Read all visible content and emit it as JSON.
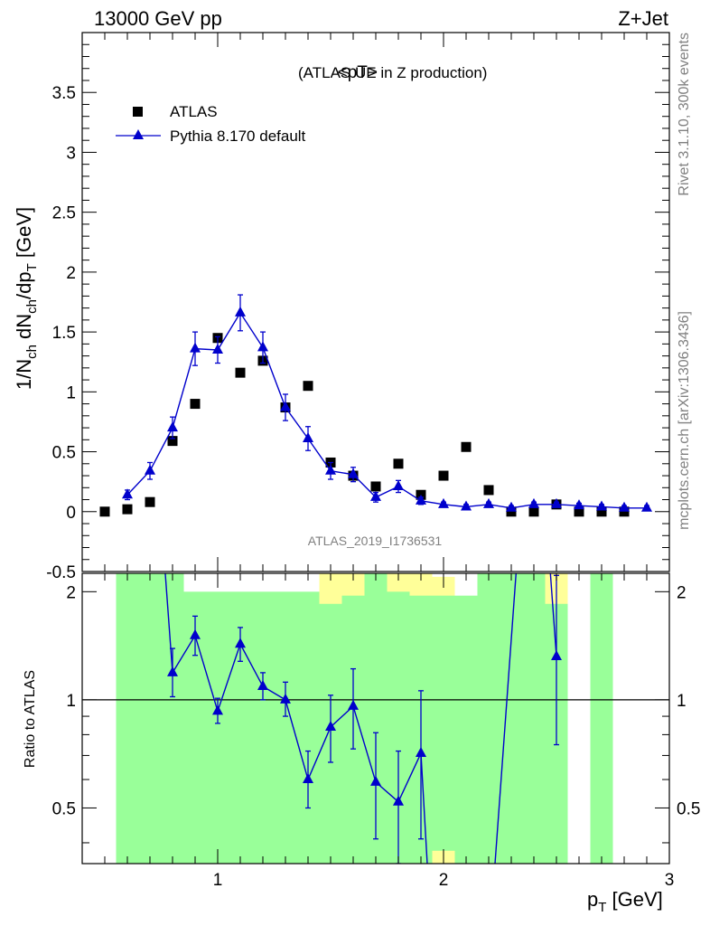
{
  "header": {
    "left": "13000 GeV pp",
    "right": "Z+Jet"
  },
  "side_labels": {
    "rivet": "Rivet 3.1.10,  300k events",
    "mcplots": "mcplots.cern.ch [arXiv:1306.3436]"
  },
  "colors": {
    "mc": "#0000cc",
    "data": "#000000",
    "band_inner": "#99ff99",
    "band_outer": "#ffff99"
  },
  "chart_data": [
    {
      "type": "scatter",
      "title": "<pT>",
      "subtitle": "(ATLAS UE in Z production)",
      "ylabel": "1/N_ch dN_ch/dp_T [GeV]",
      "watermark": "ATLAS_2019_I1736531",
      "xlim": [
        0.4,
        3.0
      ],
      "ylim": [
        -0.5,
        4.0
      ],
      "yticks": [
        "-0.5",
        "0",
        "0.5",
        "1",
        "1.5",
        "2",
        "2.5",
        "3",
        "3.5"
      ],
      "legend_position": "top-left",
      "series": [
        {
          "name": "ATLAS",
          "marker": "square",
          "x": [
            0.5,
            0.6,
            0.7,
            0.8,
            0.9,
            1.0,
            1.1,
            1.2,
            1.3,
            1.4,
            1.5,
            1.6,
            1.7,
            1.8,
            1.9,
            2.0,
            2.1,
            2.2,
            2.3,
            2.4,
            2.5,
            2.6,
            2.7,
            2.8
          ],
          "y": [
            0.0,
            0.02,
            0.08,
            0.59,
            0.9,
            1.45,
            1.16,
            1.26,
            0.87,
            1.05,
            0.41,
            0.3,
            0.21,
            0.4,
            0.14,
            0.3,
            0.54,
            0.18,
            0.0,
            0.0,
            0.06,
            0.0,
            0.0,
            0.0
          ]
        },
        {
          "name": "Pythia 8.170 default",
          "marker": "triangle",
          "x": [
            0.6,
            0.7,
            0.8,
            0.9,
            1.0,
            1.1,
            1.2,
            1.3,
            1.4,
            1.5,
            1.6,
            1.7,
            1.8,
            1.9,
            2.0,
            2.1,
            2.2,
            2.3,
            2.4,
            2.5,
            2.6,
            2.7,
            2.8,
            2.9
          ],
          "y": [
            0.14,
            0.34,
            0.7,
            1.36,
            1.35,
            1.66,
            1.37,
            0.87,
            0.61,
            0.34,
            0.31,
            0.12,
            0.21,
            0.09,
            0.06,
            0.04,
            0.06,
            0.03,
            0.06,
            0.06,
            0.05,
            0.04,
            0.03,
            0.03
          ],
          "err": [
            0.04,
            0.07,
            0.09,
            0.14,
            0.11,
            0.15,
            0.13,
            0.11,
            0.1,
            0.07,
            0.06,
            0.04,
            0.05,
            0.03,
            0.02,
            0.02,
            0.02,
            0.02,
            0.02,
            0.02,
            0.02,
            0.02,
            0.02,
            0.02
          ]
        }
      ]
    },
    {
      "type": "line",
      "ylabel": "Ratio to ATLAS",
      "xlabel": "p_T [GeV]",
      "xlim": [
        0.4,
        3.0
      ],
      "ylim": [
        0.35,
        2.25
      ],
      "yticks": [
        "0.5",
        "1",
        "2"
      ],
      "xticks": [
        "1",
        "2",
        "3"
      ],
      "reference_line": 1.0,
      "series": [
        {
          "name": "Pythia 8.170 default",
          "x": [
            0.8,
            0.9,
            1.0,
            1.1,
            1.2,
            1.3,
            1.4,
            1.5,
            1.6,
            1.7,
            1.8,
            1.9
          ],
          "y": [
            1.19,
            1.51,
            0.93,
            1.43,
            1.09,
            1.0,
            0.6,
            0.84,
            0.96,
            0.59,
            0.52,
            0.71
          ],
          "err_lo": [
            0.17,
            0.18,
            0.07,
            0.15,
            0.09,
            0.1,
            0.1,
            0.17,
            0.23,
            0.18,
            0.17,
            0.3
          ],
          "err_hi": [
            0.2,
            0.2,
            0.08,
            0.16,
            0.1,
            0.12,
            0.12,
            0.19,
            0.26,
            0.22,
            0.2,
            0.35
          ]
        },
        {
          "name": "Pythia 8.170 default (upper)",
          "x": [
            2.5
          ],
          "y": [
            1.32
          ],
          "err_lo": [
            0.57
          ],
          "err_hi": [
            0.9
          ]
        }
      ],
      "bands": {
        "bins": [
          {
            "x0": 0.55,
            "x1": 0.65,
            "inner": [
              0.3,
              3.0
            ],
            "outer": [
              0.3,
              3.0
            ]
          },
          {
            "x0": 0.65,
            "x1": 0.75,
            "inner": [
              0.3,
              2.25
            ],
            "outer": [
              0.3,
              3.0
            ]
          },
          {
            "x0": 0.75,
            "x1": 0.85,
            "inner": [
              0.3,
              2.3
            ],
            "outer": [
              0.7,
              1.65
            ]
          },
          {
            "x0": 0.85,
            "x1": 0.95,
            "inner": [
              0.3,
              2.0
            ],
            "outer": [
              0.47,
              1.6
            ]
          },
          {
            "x0": 0.95,
            "x1": 1.05,
            "inner": [
              0.3,
              2.0
            ],
            "outer": [
              0.58,
              1.58
            ]
          },
          {
            "x0": 1.05,
            "x1": 1.15,
            "inner": [
              0.3,
              2.0
            ],
            "outer": [
              0.48,
              1.6
            ]
          },
          {
            "x0": 1.15,
            "x1": 1.25,
            "inner": [
              0.3,
              2.0
            ],
            "outer": [
              0.3,
              1.62
            ]
          },
          {
            "x0": 1.25,
            "x1": 1.35,
            "inner": [
              0.3,
              2.0
            ],
            "outer": [
              0.4,
              1.65
            ]
          },
          {
            "x0": 1.35,
            "x1": 1.45,
            "inner": [
              0.3,
              2.0
            ],
            "outer": [
              0.63,
              1.5
            ]
          },
          {
            "x0": 1.45,
            "x1": 1.55,
            "inner": [
              0.3,
              1.85
            ],
            "outer": [
              0.3,
              2.6
            ]
          },
          {
            "x0": 1.55,
            "x1": 1.65,
            "inner": [
              0.3,
              1.95
            ],
            "outer": [
              0.3,
              2.6
            ]
          },
          {
            "x0": 1.65,
            "x1": 1.75,
            "inner": [
              0.3,
              2.6
            ],
            "outer": [
              0.3,
              2.6
            ]
          },
          {
            "x0": 1.75,
            "x1": 1.85,
            "inner": [
              0.3,
              2.0
            ],
            "outer": [
              0.3,
              2.3
            ]
          },
          {
            "x0": 1.85,
            "x1": 1.95,
            "inner": [
              0.3,
              1.95
            ],
            "outer": [
              0.3,
              2.6
            ]
          },
          {
            "x0": 1.95,
            "x1": 2.05,
            "inner": [
              0.38,
              1.95
            ],
            "outer": [
              0.3,
              2.2
            ]
          },
          {
            "x0": 2.05,
            "x1": 2.15,
            "inner": [
              0.3,
              1.95
            ],
            "outer": [
              0.3,
              1.68
            ]
          },
          {
            "x0": 2.15,
            "x1": 2.25,
            "inner": [
              0.3,
              2.6
            ],
            "outer": [
              0.3,
              2.6
            ]
          },
          {
            "x0": 2.25,
            "x1": 2.35,
            "inner": [
              0.3,
              2.6
            ],
            "outer": [
              0.3,
              2.6
            ]
          },
          {
            "x0": 2.35,
            "x1": 2.45,
            "inner": [
              0.3,
              2.6
            ],
            "outer": [
              0.3,
              2.6
            ]
          },
          {
            "x0": 2.45,
            "x1": 2.55,
            "inner": [
              0.3,
              1.85
            ],
            "outer": [
              0.3,
              2.6
            ]
          },
          {
            "x0": 2.65,
            "x1": 2.75,
            "inner": [
              0.3,
              2.6
            ],
            "outer": [
              0.3,
              2.6
            ]
          }
        ]
      }
    }
  ]
}
